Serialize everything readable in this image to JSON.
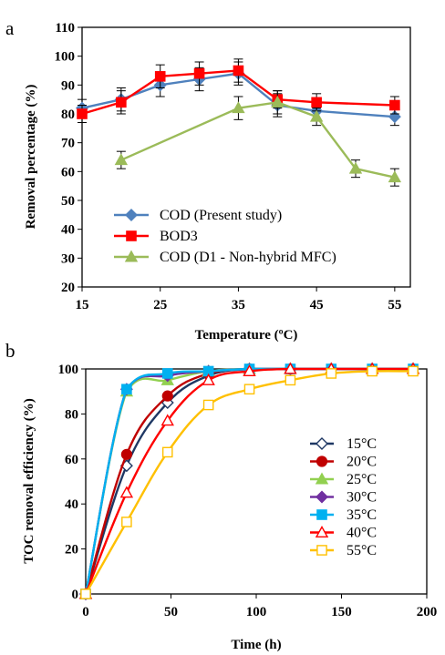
{
  "chart_data": [
    {
      "type": "line",
      "panel_label": "a",
      "xlabel": "Temperature (ºC)",
      "ylabel": "Removal percentage (%)",
      "xlim": [
        15,
        57
      ],
      "ylim": [
        20,
        110
      ],
      "xticks": [
        15,
        25,
        35,
        45,
        55
      ],
      "yticks": [
        20,
        30,
        40,
        50,
        60,
        70,
        80,
        90,
        100,
        110
      ],
      "grid": false,
      "legend_position": "bottom-left",
      "series": [
        {
          "name": "COD (Present study)",
          "color": "#4f81bd",
          "marker": "diamond",
          "x": [
            15,
            20,
            25,
            30,
            35,
            40,
            45,
            55
          ],
          "y": [
            82,
            85,
            90,
            92,
            94,
            83,
            81,
            79
          ],
          "err": [
            3,
            4,
            4,
            4,
            4,
            4,
            3,
            3
          ]
        },
        {
          "name": "BOD3",
          "color": "#ff0000",
          "marker": "square",
          "x": [
            15,
            20,
            25,
            30,
            35,
            40,
            45,
            55
          ],
          "y": [
            80,
            84,
            93,
            94,
            95,
            85,
            84,
            83
          ],
          "err": [
            3,
            4,
            4,
            4,
            4,
            3,
            3,
            3
          ]
        },
        {
          "name": "COD (D1 - Non-hybrid MFC)",
          "color": "#9bbb59",
          "marker": "triangle",
          "x": [
            20,
            35,
            40,
            45,
            50,
            55
          ],
          "y": [
            64,
            82,
            84,
            79,
            61,
            58
          ],
          "err": [
            3,
            4,
            4,
            3,
            3,
            3
          ]
        }
      ]
    },
    {
      "type": "line",
      "panel_label": "b",
      "xlabel": "Time (h)",
      "ylabel": "TOC removal efficiency (%)",
      "xlim": [
        0,
        200
      ],
      "ylim": [
        0,
        100
      ],
      "xticks": [
        0,
        50,
        100,
        150,
        200
      ],
      "yticks": [
        0,
        20,
        40,
        60,
        80,
        100
      ],
      "grid": false,
      "legend_position": "right",
      "series": [
        {
          "name": "15°C",
          "color": "#1f3864",
          "marker": "diamond-open",
          "x": [
            0,
            24,
            48,
            72,
            96,
            120,
            144,
            168,
            192
          ],
          "y": [
            0,
            57,
            85,
            97,
            100,
            100,
            100,
            100,
            100
          ]
        },
        {
          "name": "20°C",
          "color": "#c00000",
          "marker": "circle",
          "x": [
            0,
            24,
            48,
            72,
            96,
            120,
            144,
            168,
            192
          ],
          "y": [
            0,
            62,
            88,
            98,
            100,
            100,
            100,
            100,
            100
          ]
        },
        {
          "name": "25°C",
          "color": "#92d050",
          "marker": "triangle",
          "x": [
            0,
            24,
            48,
            72,
            96,
            120,
            144,
            168,
            192
          ],
          "y": [
            0,
            90,
            95,
            99,
            100,
            100,
            100,
            100,
            100
          ]
        },
        {
          "name": "30°C",
          "color": "#7030a0",
          "marker": "diamond",
          "x": [
            0,
            24,
            48,
            72,
            96,
            120,
            144,
            168,
            192
          ],
          "y": [
            0,
            91,
            97,
            99,
            100,
            100,
            100,
            100,
            100
          ]
        },
        {
          "name": "35°C",
          "color": "#00b0f0",
          "marker": "square",
          "x": [
            0,
            24,
            48,
            72,
            96,
            120,
            144,
            168,
            192
          ],
          "y": [
            0,
            91,
            98,
            99,
            100,
            100,
            100,
            100,
            100
          ]
        },
        {
          "name": "40°C",
          "color": "#ff0000",
          "marker": "triangle-open",
          "x": [
            0,
            24,
            48,
            72,
            96,
            120,
            144,
            168,
            192
          ],
          "y": [
            0,
            45,
            77,
            95,
            99,
            100,
            100,
            100,
            100
          ]
        },
        {
          "name": "55°C",
          "color": "#ffc000",
          "marker": "square-open",
          "x": [
            0,
            24,
            48,
            72,
            96,
            120,
            144,
            168,
            192
          ],
          "y": [
            0,
            32,
            63,
            84,
            91,
            95,
            98,
            99,
            99
          ]
        }
      ]
    }
  ]
}
